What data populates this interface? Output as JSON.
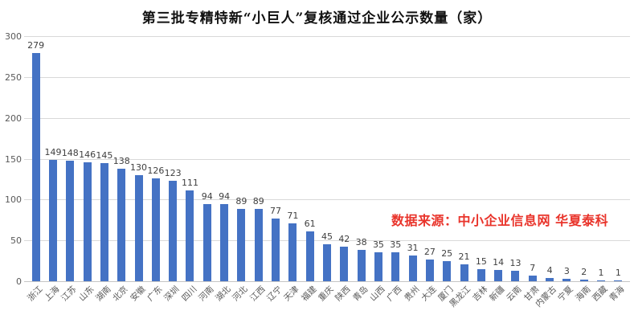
{
  "chart_data": {
    "type": "bar",
    "title": "第三批专精特新“小巨人”复核通过企业公示数量（家）",
    "categories": [
      "浙江",
      "上海",
      "江苏",
      "山东",
      "湖南",
      "北京",
      "安徽",
      "广东",
      "深圳",
      "四川",
      "河南",
      "湖北",
      "河北",
      "江西",
      "辽宁",
      "天津",
      "福建",
      "重庆",
      "陕西",
      "青岛",
      "山西",
      "广西",
      "贵州",
      "大连",
      "厦门",
      "黑龙江",
      "吉林",
      "新疆",
      "云南",
      "甘肃",
      "内蒙古",
      "宁夏",
      "海南",
      "西藏",
      "青海"
    ],
    "values": [
      279,
      149,
      148,
      146,
      145,
      138,
      130,
      126,
      123,
      111,
      94,
      94,
      89,
      89,
      77,
      71,
      61,
      45,
      42,
      38,
      35,
      35,
      31,
      27,
      25,
      21,
      15,
      14,
      13,
      7,
      4,
      3,
      2,
      1,
      1
    ],
    "xlabel": "",
    "ylabel": "",
    "ylim": [
      0,
      300
    ],
    "y_ticks": [
      0,
      50,
      100,
      150,
      200,
      250,
      300
    ],
    "grid": true,
    "legend": false,
    "bar_color": "#4472c4",
    "data_labels": true
  },
  "source_note": "数据来源：中小企业信息网 华夏泰科",
  "colors": {
    "bar": "#4472c4",
    "gridline": "#d9d9d9",
    "axis_text": "#595959",
    "value_label": "#3f3f3f",
    "source_text": "#e9342b",
    "title_text": "#111111"
  }
}
